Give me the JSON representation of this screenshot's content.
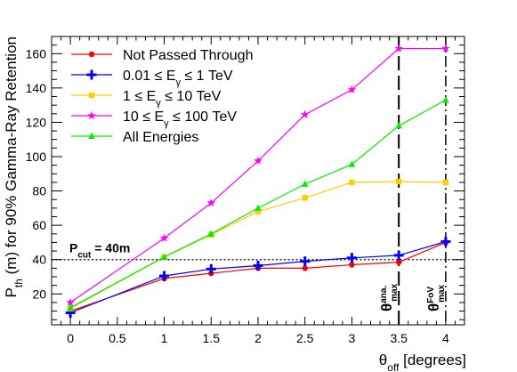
{
  "chart_data": {
    "type": "line",
    "xlabel": "θ_off [degrees]",
    "ylabel": "P_th (m) for 90% Gamma-Ray Retention",
    "xlim": [
      -0.2,
      4.2
    ],
    "ylim": [
      2,
      170
    ],
    "x_ticks": [
      0,
      0.5,
      1,
      1.5,
      2,
      2.5,
      3,
      3.5,
      4
    ],
    "x_tick_labels": [
      "0",
      "0.5",
      "1",
      "1.5",
      "2",
      "2.5",
      "3",
      "3.5",
      "4"
    ],
    "y_ticks": [
      20,
      40,
      60,
      80,
      100,
      120,
      140,
      160
    ],
    "y_tick_labels": [
      "20",
      "40",
      "60",
      "80",
      "100",
      "120",
      "140",
      "160"
    ],
    "grid": false,
    "legend_position": "top-left",
    "series": [
      {
        "name": "Not Passed Through",
        "color": "#ff0000",
        "marker": "circle",
        "x": [
          0,
          1,
          1.5,
          2,
          2.5,
          3,
          3.5,
          4
        ],
        "y": [
          10,
          29,
          32,
          35,
          35,
          37,
          38.5,
          50
        ]
      },
      {
        "name": "0.01 ≤ E_γ ≤ 1 TeV",
        "color": "#0000ff",
        "marker": "plus",
        "x": [
          0,
          1,
          1.5,
          2,
          2.5,
          3,
          3.5,
          4
        ],
        "y": [
          9,
          30.5,
          34.5,
          36.5,
          39,
          41,
          42.5,
          50.5
        ]
      },
      {
        "name": "1 ≤ E_γ ≤ 10 TeV",
        "color": "#ffcc00",
        "marker": "square",
        "x": [
          0,
          1,
          1.5,
          2,
          2.5,
          3,
          3.5,
          4
        ],
        "y": [
          11.5,
          41.5,
          54.5,
          68,
          76,
          85,
          85.5,
          85
        ]
      },
      {
        "name": "10 ≤ E_γ ≤ 100 TeV",
        "color": "#ff00ff",
        "marker": "star",
        "x": [
          0,
          1,
          1.5,
          2,
          2.5,
          3,
          3.5,
          4
        ],
        "y": [
          15,
          52.5,
          73,
          97.5,
          124.5,
          139,
          163,
          163
        ]
      },
      {
        "name": "All Energies",
        "color": "#00ee00",
        "marker": "triangle",
        "x": [
          0,
          1,
          1.5,
          2,
          2.5,
          3,
          3.5,
          4
        ],
        "y": [
          12,
          41.5,
          55,
          70,
          84,
          95.5,
          118,
          133
        ]
      }
    ],
    "annotations": {
      "hline": {
        "y": 40,
        "label": "P_cut = 40m",
        "style": "dotted"
      },
      "vlines": [
        {
          "x": 3.5,
          "label": "θ_max^ana.",
          "style": "long-dash"
        },
        {
          "x": 4,
          "label": "θ_max^FoV",
          "style": "dash-dot"
        }
      ]
    }
  }
}
